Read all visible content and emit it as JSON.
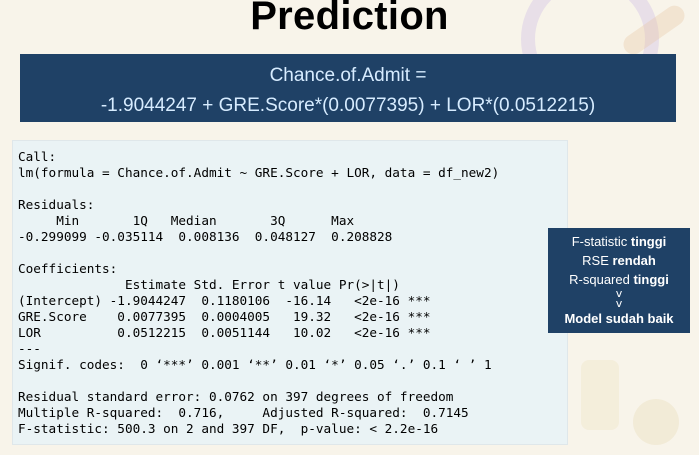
{
  "title": "Prediction",
  "formula": {
    "line1": "Chance.of.Admit =",
    "line2": "-1.9044247 + GRE.Score*(0.0077395) + LOR*(0.0512215)"
  },
  "r_output": [
    "Call:",
    "lm(formula = Chance.of.Admit ~ GRE.Score + LOR, data = df_new2)",
    "",
    "Residuals:",
    "     Min       1Q   Median       3Q      Max",
    "-0.299099 -0.035114  0.008136  0.048127  0.208828",
    "",
    "Coefficients:",
    "              Estimate Std. Error t value Pr(>|t|)",
    "(Intercept) -1.9044247  0.1180106  -16.14   <2e-16 ***",
    "GRE.Score    0.0077395  0.0004005   19.32   <2e-16 ***",
    "LOR          0.0512215  0.0051144   10.02   <2e-16 ***",
    "---",
    "Signif. codes:  0 ‘***’ 0.001 ‘**’ 0.01 ‘*’ 0.05 ‘.’ 0.1 ‘ ’ 1",
    "",
    "Residual standard error: 0.0762 on 397 degrees of freedom",
    "Multiple R-squared:  0.716,     Adjusted R-squared:  0.7145",
    "F-statistic: 500.3 on 2 and 397 DF,  p-value: < 2.2e-16"
  ],
  "summary": {
    "line1_normal": "F-statistic ",
    "line1_bold": "tinggi",
    "line2_normal": "RSE ",
    "line2_bold": "rendah",
    "line3_normal": "R-squared ",
    "line3_bold": "tinggi",
    "line4_model": "Model",
    "line4_sudah": "sudah baik"
  }
}
